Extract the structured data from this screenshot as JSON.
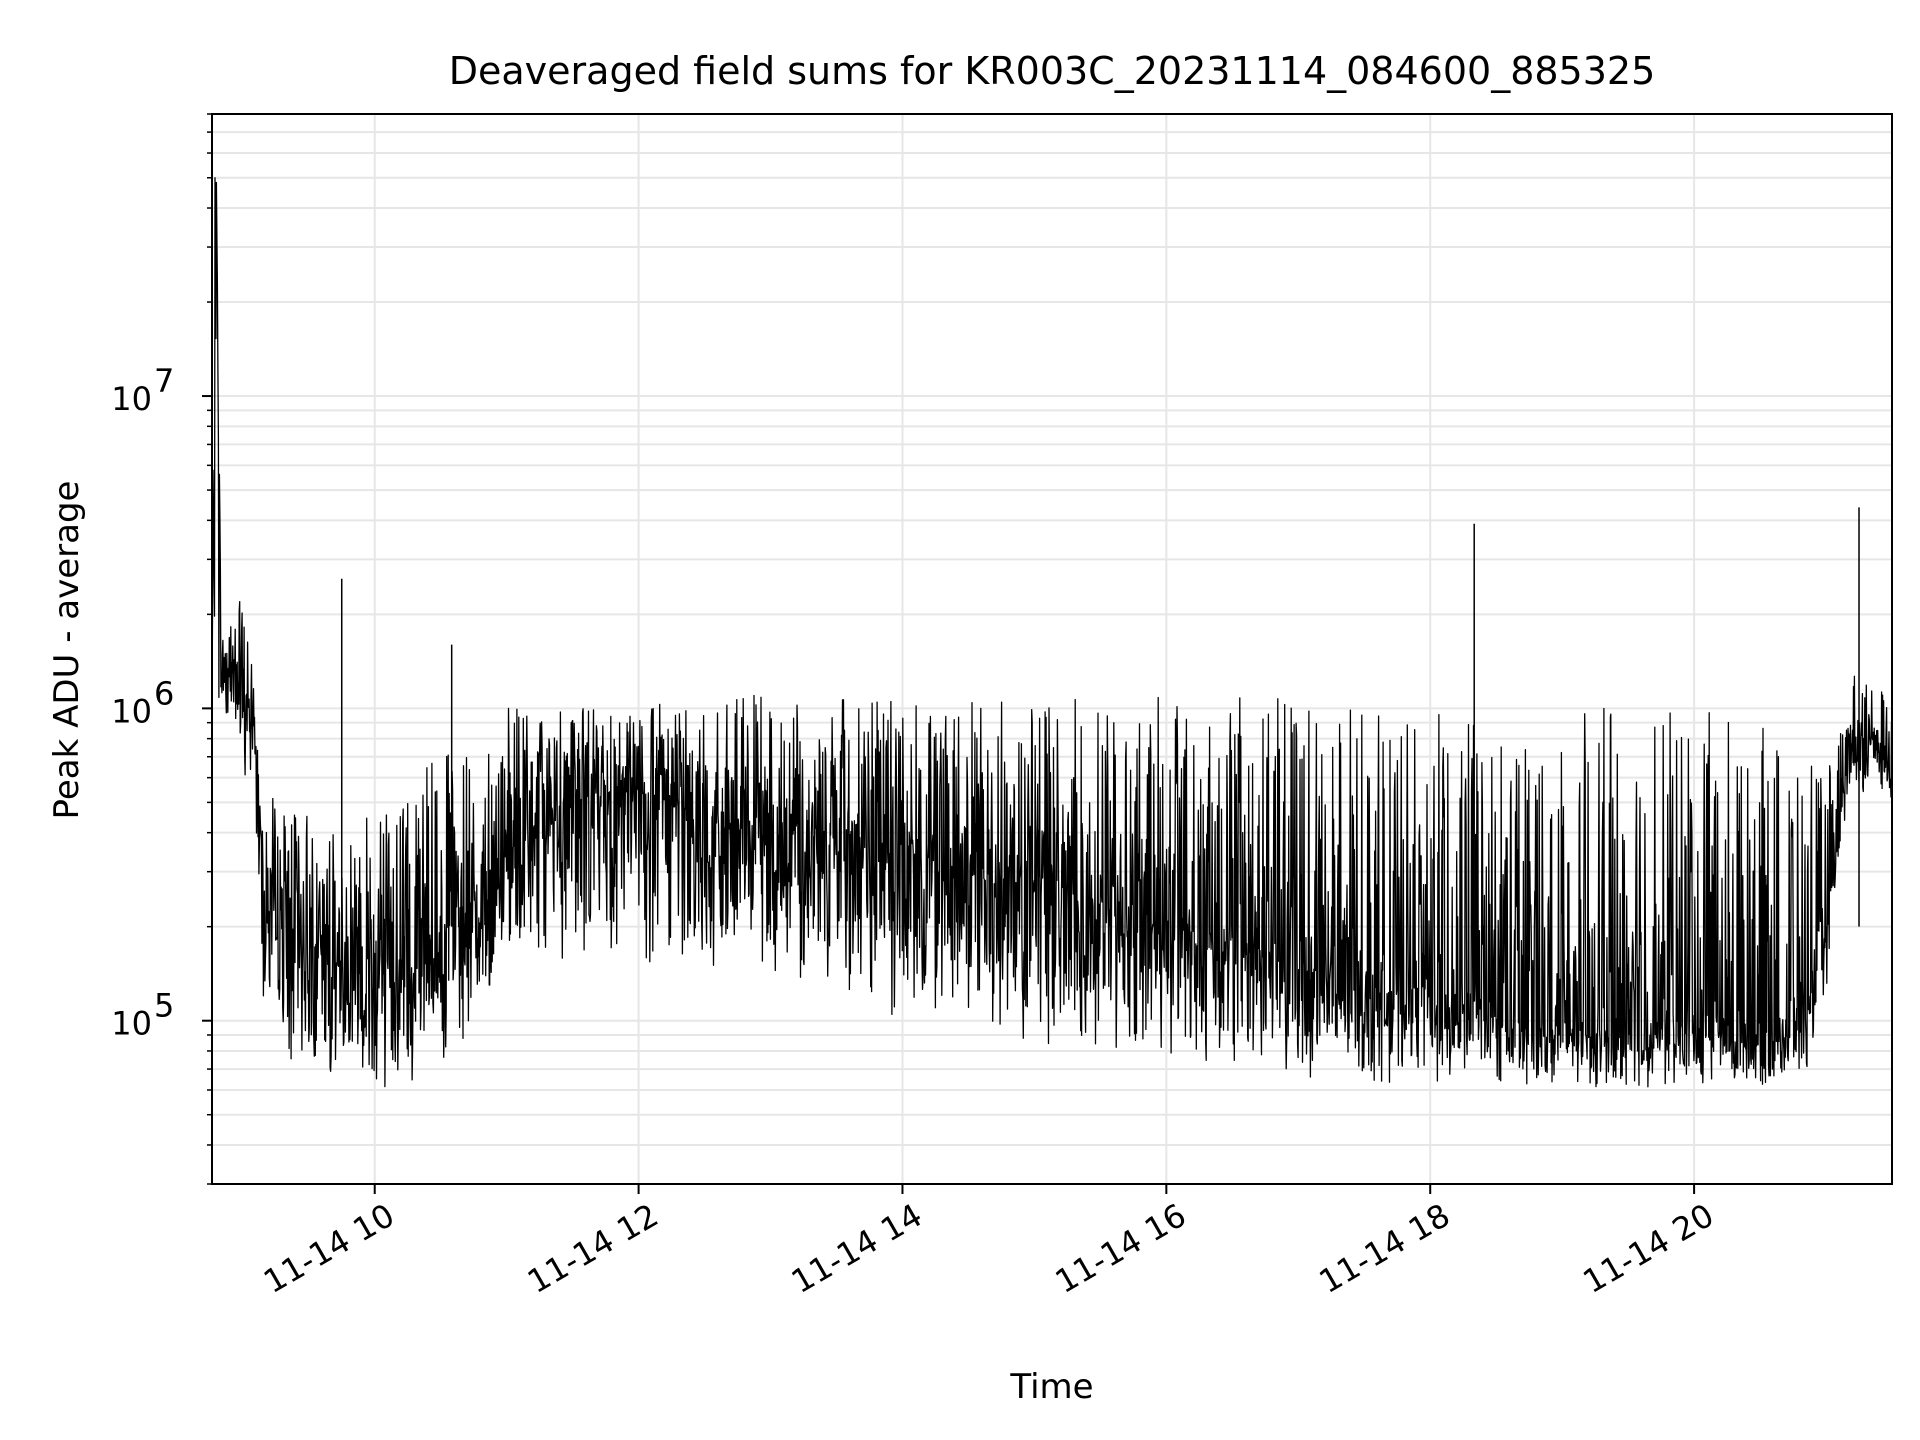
{
  "chart_data": {
    "type": "line",
    "title": "Deaveraged field sums for KR003C_20231114_084600_885325",
    "xlabel": "Time",
    "ylabel": "Peak ADU - average",
    "x_scale": "time",
    "y_scale": "log",
    "xlim": [
      "2023-11-14 08:46",
      "2023-11-14 21:30"
    ],
    "ylim": [
      30000,
      80000000
    ],
    "grid": true,
    "line_color": "#000000",
    "x_ticks": [
      "11-14 10",
      "11-14 12",
      "11-14 14",
      "11-14 16",
      "11-14 18",
      "11-14 20"
    ],
    "y_ticks": [
      {
        "label": "10",
        "exp": "5",
        "value": 100000
      },
      {
        "label": "10",
        "exp": "6",
        "value": 1000000
      },
      {
        "label": "10",
        "exp": "7",
        "value": 10000000
      }
    ],
    "series": [
      {
        "x": [
          "2023-11-14 08:46",
          "2023-11-14 08:48",
          "2023-11-14 08:50",
          "2023-11-14 08:52",
          "2023-11-14 08:55",
          "2023-11-14 09:00",
          "2023-11-14 09:05",
          "2023-11-14 09:10",
          "2023-11-14 09:15",
          "2023-11-14 09:20",
          "2023-11-14 09:30",
          "2023-11-14 09:40",
          "2023-11-14 09:50",
          "2023-11-14 10:00",
          "2023-11-14 10:15",
          "2023-11-14 10:30",
          "2023-11-14 10:45",
          "2023-11-14 11:00",
          "2023-11-14 11:15",
          "2023-11-14 11:30",
          "2023-11-14 12:00",
          "2023-11-14 12:30",
          "2023-11-14 13:00",
          "2023-11-14 13:30",
          "2023-11-14 14:00",
          "2023-11-14 14:30",
          "2023-11-14 15:00",
          "2023-11-14 15:30",
          "2023-11-14 16:00",
          "2023-11-14 16:30",
          "2023-11-14 17:00",
          "2023-11-14 17:30",
          "2023-11-14 18:00",
          "2023-11-14 18:30",
          "2023-11-14 19:00",
          "2023-11-14 19:30",
          "2023-11-14 20:00",
          "2023-11-14 20:30",
          "2023-11-14 20:50",
          "2023-11-14 21:00",
          "2023-11-14 21:10",
          "2023-11-14 21:20",
          "2023-11-14 21:30"
        ],
        "y": [
          1000000,
          50000000,
          1500000,
          1200000,
          1400000,
          1100000,
          900000,
          250000,
          180000,
          200000,
          170000,
          160000,
          150000,
          140000,
          140000,
          180000,
          220000,
          300000,
          450000,
          500000,
          550000,
          400000,
          420000,
          380000,
          350000,
          300000,
          280000,
          250000,
          200000,
          180000,
          150000,
          120000,
          130000,
          100000,
          90000,
          90000,
          95000,
          90000,
          100000,
          200000,
          700000,
          800000,
          750000
        ],
        "y_band_low": [
          800000,
          800000,
          900000,
          900000,
          900000,
          600000,
          400000,
          100000,
          70000,
          70000,
          70000,
          65000,
          65000,
          60000,
          60000,
          70000,
          90000,
          120000,
          150000,
          150000,
          150000,
          130000,
          120000,
          110000,
          100000,
          90000,
          85000,
          80000,
          70000,
          68000,
          65000,
          63000,
          62000,
          62000,
          60000,
          60000,
          60000,
          60000,
          65000,
          120000,
          500000,
          550000,
          500000
        ],
        "y_band_high": [
          1300000,
          50000000,
          2500000,
          2000000,
          2400000,
          2200000,
          1300000,
          600000,
          500000,
          450000,
          500000,
          400000,
          450000,
          500000,
          600000,
          700000,
          800000,
          1000000,
          1000000,
          1000000,
          1050000,
          1100000,
          1100000,
          1100000,
          1100000,
          1050000,
          1050000,
          1100000,
          1100000,
          1100000,
          1100000,
          1000000,
          1000000,
          900000,
          1000000,
          1000000,
          1000000,
          900000,
          700000,
          600000,
          1300000,
          1250000,
          1100000
        ]
      }
    ],
    "spikes": [
      {
        "x": "2023-11-14 09:45",
        "y": 2600000
      },
      {
        "x": "2023-11-14 10:35",
        "y": 1600000
      },
      {
        "x": "2023-11-14 18:20",
        "y": 3900000
      },
      {
        "x": "2023-11-14 21:15",
        "y": 4400000
      }
    ]
  }
}
